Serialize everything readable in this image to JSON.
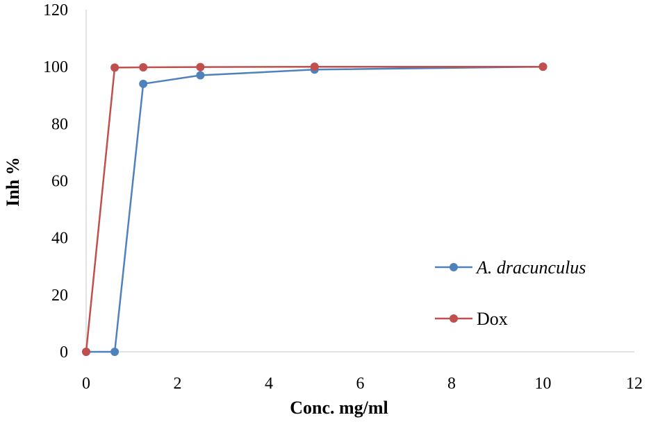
{
  "chart_data": {
    "type": "line",
    "title": "",
    "xlabel": "Conc. mg/ml",
    "ylabel": "Inh %",
    "xlim": [
      0,
      12
    ],
    "ylim": [
      0,
      120
    ],
    "xticks": [
      0,
      2,
      4,
      6,
      8,
      10,
      12
    ],
    "yticks": [
      0,
      20,
      40,
      60,
      80,
      100,
      120
    ],
    "grid": {
      "x": false,
      "y": false,
      "x_axis_line": true,
      "y_axis_line": true
    },
    "legend": {
      "position": "right-bottom"
    },
    "series": [
      {
        "name": "A. dracunculus",
        "italic": true,
        "color": "#4F81BD",
        "x": [
          0,
          0.625,
          1.25,
          2.5,
          5,
          10
        ],
        "y": [
          0,
          0,
          94,
          97,
          99,
          100
        ]
      },
      {
        "name": "Dox",
        "italic": false,
        "color": "#C0504D",
        "x": [
          0,
          0.625,
          1.25,
          2.5,
          5,
          10
        ],
        "y": [
          0,
          99.7,
          99.8,
          99.9,
          100,
          100
        ]
      }
    ]
  }
}
